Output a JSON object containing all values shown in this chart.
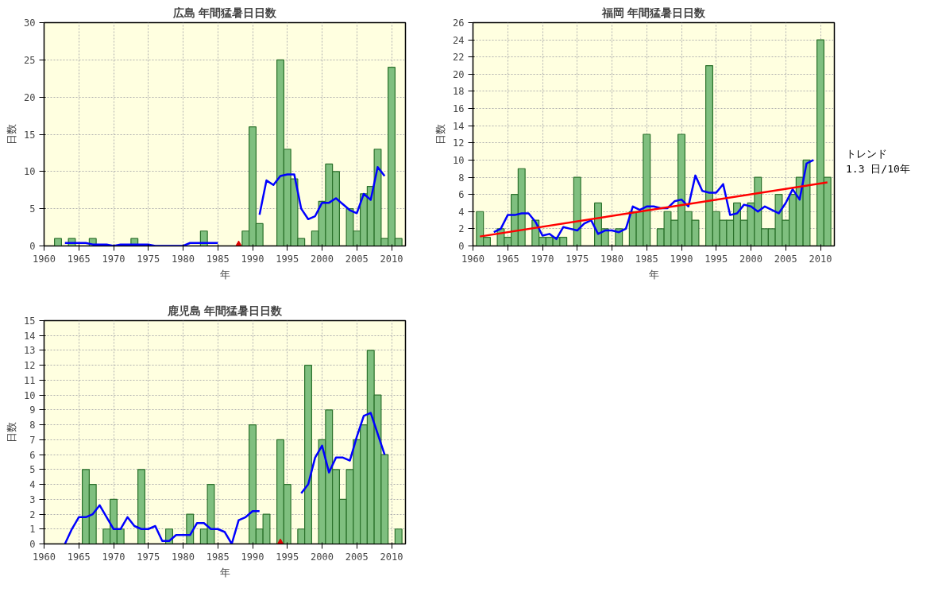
{
  "chart_data": [
    {
      "type": "bar",
      "title": "広島 年間猛暑日日数",
      "xlabel": "年",
      "ylabel": "日数",
      "xlim": [
        1960,
        2012
      ],
      "xticks": [
        1960,
        1965,
        1970,
        1975,
        1980,
        1985,
        1990,
        1995,
        2000,
        2005,
        2010
      ],
      "ylim": [
        0,
        30
      ],
      "yticks": [
        0,
        5,
        10,
        15,
        20,
        25,
        30
      ],
      "grid": true,
      "x": [
        1962,
        1963,
        1964,
        1965,
        1966,
        1967,
        1968,
        1969,
        1970,
        1971,
        1972,
        1973,
        1974,
        1975,
        1976,
        1977,
        1978,
        1979,
        1980,
        1981,
        1982,
        1983,
        1984,
        1985,
        1986,
        1987,
        1988,
        1989,
        1990,
        1991,
        1992,
        1993,
        1994,
        1995,
        1996,
        1997,
        1998,
        1999,
        2000,
        2001,
        2002,
        2003,
        2004,
        2005,
        2006,
        2007,
        2008,
        2009,
        2010,
        2011
      ],
      "series": [
        {
          "color": "#7fbf7f",
          "values": [
            1,
            null,
            1,
            null,
            null,
            1,
            null,
            null,
            null,
            null,
            null,
            1,
            null,
            null,
            null,
            null,
            null,
            null,
            null,
            null,
            null,
            2,
            null,
            null,
            null,
            null,
            null,
            2,
            16,
            3,
            null,
            null,
            25,
            13,
            9,
            1,
            null,
            2,
            6,
            11,
            10,
            null,
            5,
            2,
            7,
            8,
            13,
            1,
            24,
            1
          ]
        },
        {
          "type": "line",
          "color": "#0000ff",
          "x": [
            1963,
            1964,
            1965,
            1966,
            1967,
            1968,
            1969,
            1970,
            1971,
            1972,
            1973,
            1974,
            1975,
            1976,
            1977,
            1978,
            1979,
            1980,
            1981,
            1982,
            1983,
            1984,
            1985,
            1986,
            1987,
            1988,
            1989,
            1990,
            1991,
            1992,
            1993,
            1994,
            1995,
            1996,
            1997,
            1998,
            1999,
            2000,
            2001,
            2002,
            2003,
            2004,
            2005,
            2006,
            2007,
            2008,
            2009
          ],
          "values": [
            0.4,
            0.4,
            0.4,
            0.4,
            0.2,
            0.2,
            0.2,
            0,
            0.2,
            0.2,
            0.2,
            0.2,
            0.2,
            0,
            0,
            0,
            0,
            0,
            0.4,
            0.4,
            0.4,
            0.4,
            0.4,
            null,
            null,
            null,
            null,
            null,
            4.2,
            8.8,
            8.2,
            9.4,
            9.6,
            9.6,
            5,
            3.6,
            4,
            5.8,
            5.8,
            6.4,
            5.6,
            4.8,
            4.4,
            7,
            6.2,
            10.6,
            9.4
          ]
        },
        {
          "type": "scatter",
          "marker": "triangle",
          "color": "#dd0000",
          "x": [
            1988
          ],
          "values": [
            0
          ]
        }
      ]
    },
    {
      "type": "bar",
      "title": "福岡 年間猛暑日日数",
      "xlabel": "年",
      "ylabel": "日数",
      "xlim": [
        1960,
        2012
      ],
      "xticks": [
        1960,
        1965,
        1970,
        1975,
        1980,
        1985,
        1990,
        1995,
        2000,
        2005,
        2010
      ],
      "ylim": [
        0,
        26
      ],
      "yticks": [
        0,
        2,
        4,
        6,
        8,
        10,
        12,
        14,
        16,
        18,
        20,
        22,
        24,
        26
      ],
      "grid": true,
      "annotations": [
        "トレンド\n1.3 日/10年"
      ],
      "x": [
        1961,
        1962,
        1963,
        1964,
        1965,
        1966,
        1967,
        1968,
        1969,
        1970,
        1971,
        1972,
        1973,
        1974,
        1975,
        1976,
        1977,
        1978,
        1979,
        1980,
        1981,
        1982,
        1983,
        1984,
        1985,
        1986,
        1987,
        1988,
        1989,
        1990,
        1991,
        1992,
        1993,
        1994,
        1995,
        1996,
        1997,
        1998,
        1999,
        2000,
        2001,
        2002,
        2003,
        2004,
        2005,
        2006,
        2007,
        2008,
        2009,
        2010,
        2011
      ],
      "series": [
        {
          "color": "#7fbf7f",
          "values": [
            4,
            1,
            null,
            2,
            1,
            6,
            9,
            null,
            3,
            1,
            1,
            1,
            1,
            null,
            8,
            null,
            null,
            5,
            2,
            null,
            2,
            null,
            4,
            4,
            13,
            null,
            2,
            4,
            3,
            13,
            4,
            3,
            null,
            21,
            4,
            3,
            3,
            5,
            3,
            5,
            8,
            2,
            2,
            6,
            3,
            6,
            8,
            10,
            null,
            24,
            8
          ]
        },
        {
          "type": "line",
          "color": "#0000ff",
          "x": [
            1963,
            1964,
            1965,
            1966,
            1967,
            1968,
            1969,
            1970,
            1971,
            1972,
            1973,
            1974,
            1975,
            1976,
            1977,
            1978,
            1979,
            1980,
            1981,
            1982,
            1983,
            1984,
            1985,
            1986,
            1987,
            1988,
            1989,
            1990,
            1991,
            1992,
            1993,
            1994,
            1995,
            1996,
            1997,
            1998,
            1999,
            2000,
            2001,
            2002,
            2003,
            2004,
            2005,
            2006,
            2007,
            2008,
            2009
          ],
          "values": [
            1.6,
            2.0,
            3.6,
            3.6,
            3.8,
            3.8,
            2.8,
            1.2,
            1.4,
            0.8,
            2.2,
            2.0,
            1.8,
            2.6,
            3.0,
            1.4,
            1.8,
            1.8,
            1.6,
            2.0,
            4.6,
            4.2,
            4.6,
            4.6,
            4.4,
            4.4,
            5.2,
            5.4,
            4.6,
            8.2,
            6.4,
            6.2,
            6.2,
            7.2,
            3.6,
            3.8,
            4.8,
            4.6,
            4.0,
            4.6,
            4.2,
            3.8,
            5.0,
            6.6,
            5.4,
            9.6,
            10.0
          ]
        },
        {
          "type": "line",
          "color": "#ff0000",
          "x": [
            1961,
            2011
          ],
          "values": [
            1.1,
            7.4
          ]
        }
      ]
    },
    {
      "type": "bar",
      "title": "鹿児島 年間猛暑日日数",
      "xlabel": "年",
      "ylabel": "日数",
      "xlim": [
        1960,
        2012
      ],
      "xticks": [
        1960,
        1965,
        1970,
        1975,
        1980,
        1985,
        1990,
        1995,
        2000,
        2005,
        2010
      ],
      "ylim": [
        0,
        15
      ],
      "yticks": [
        0,
        1,
        2,
        3,
        4,
        5,
        6,
        7,
        8,
        9,
        10,
        11,
        12,
        13,
        14,
        15
      ],
      "grid": true,
      "x": [
        1966,
        1967,
        1968,
        1969,
        1970,
        1971,
        1972,
        1973,
        1974,
        1975,
        1976,
        1977,
        1978,
        1979,
        1980,
        1981,
        1982,
        1983,
        1984,
        1985,
        1986,
        1987,
        1988,
        1989,
        1990,
        1991,
        1992,
        1993,
        1994,
        1995,
        1996,
        1997,
        1998,
        1999,
        2000,
        2001,
        2002,
        2003,
        2004,
        2005,
        2006,
        2007,
        2008,
        2009,
        2010,
        2011
      ],
      "series": [
        {
          "color": "#7fbf7f",
          "values": [
            5,
            4,
            null,
            1,
            3,
            1,
            null,
            null,
            5,
            null,
            null,
            null,
            1,
            null,
            null,
            2,
            null,
            1,
            4,
            null,
            null,
            null,
            null,
            null,
            8,
            1,
            2,
            null,
            7,
            4,
            null,
            1,
            12,
            null,
            7,
            9,
            5,
            3,
            5,
            7,
            8,
            13,
            10,
            6,
            null,
            1
          ]
        },
        {
          "type": "line",
          "color": "#0000ff",
          "x": [
            1963,
            1964,
            1965,
            1966,
            1967,
            1968,
            1969,
            1970,
            1971,
            1972,
            1973,
            1974,
            1975,
            1976,
            1977,
            1978,
            1979,
            1980,
            1981,
            1982,
            1983,
            1984,
            1985,
            1986,
            1987,
            1988,
            1989,
            1990,
            1991,
            1992,
            1993,
            1994,
            1995,
            1996,
            1997,
            1998,
            1999,
            2000,
            2001,
            2002,
            2003,
            2004,
            2005,
            2006,
            2007,
            2008,
            2009
          ],
          "values": [
            0,
            1.0,
            1.8,
            1.8,
            2.0,
            2.6,
            1.8,
            1.0,
            1.0,
            1.8,
            1.2,
            1.0,
            1.0,
            1.2,
            0.2,
            0.2,
            0.6,
            0.6,
            0.6,
            1.4,
            1.4,
            1.0,
            1.0,
            0.8,
            0,
            1.6,
            1.8,
            2.2,
            2.2,
            null,
            null,
            null,
            null,
            null,
            3.4,
            4.0,
            5.8,
            6.6,
            4.8,
            5.8,
            5.8,
            5.6,
            7.2,
            8.6,
            8.8,
            7.4,
            6.0
          ]
        },
        {
          "type": "scatter",
          "marker": "triangle",
          "color": "#dd0000",
          "x": [
            1994
          ],
          "values": [
            0
          ]
        }
      ]
    }
  ]
}
